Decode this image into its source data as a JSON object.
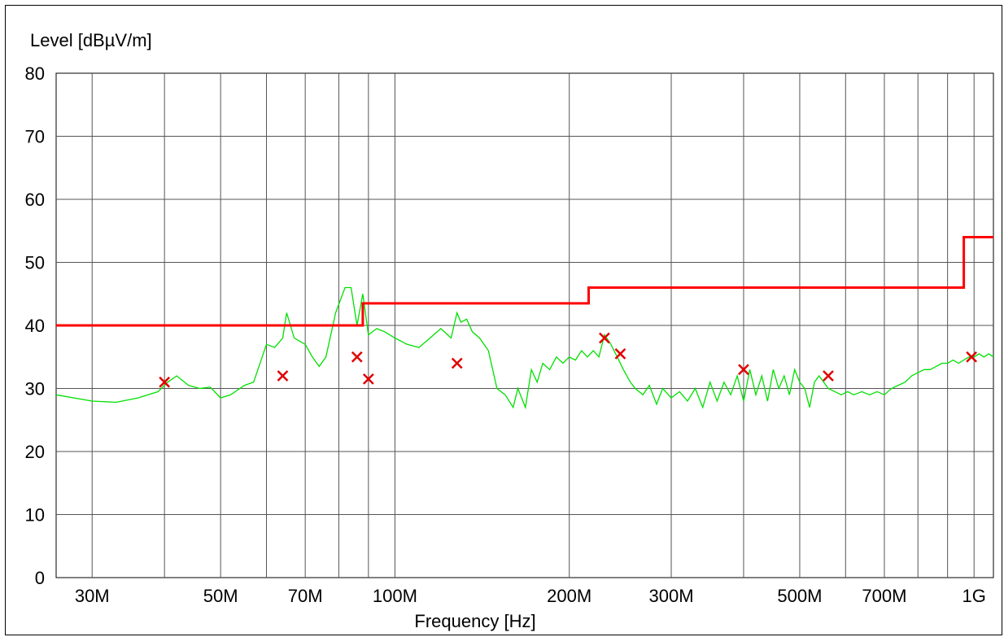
{
  "chart_data": {
    "type": "line",
    "title": "",
    "ylabel": "Level [dBµV/m]",
    "xlabel": "Frequency [Hz]",
    "x_scale": "log",
    "xlim": [
      26000000,
      1080000000
    ],
    "ylim": [
      0,
      80
    ],
    "yticks": [
      0,
      10,
      20,
      30,
      40,
      50,
      60,
      70,
      80
    ],
    "xticks": [
      {
        "value": 30000000,
        "label": "30M"
      },
      {
        "value": 50000000,
        "label": "50M"
      },
      {
        "value": 70000000,
        "label": "70M"
      },
      {
        "value": 100000000,
        "label": "100M"
      },
      {
        "value": 200000000,
        "label": "200M"
      },
      {
        "value": 300000000,
        "label": "300M"
      },
      {
        "value": 500000000,
        "label": "500M"
      },
      {
        "value": 700000000,
        "label": "700M"
      },
      {
        "value": 1000000000,
        "label": "1G"
      }
    ],
    "grid": true,
    "colors": {
      "scan": "#00e000",
      "limit": "#ff0000",
      "markers": "#e00000",
      "grid": "#000000"
    },
    "series": [
      {
        "kind": "scan",
        "x": [
          26000000,
          30000000,
          33000000,
          36000000,
          39000000,
          40500000,
          42000000,
          44000000,
          46000000,
          48000000,
          50000000,
          52000000,
          55000000,
          57000000,
          60000000,
          62000000,
          64000000,
          65000000,
          67000000,
          70000000,
          72000000,
          74000000,
          76000000,
          79000000,
          82000000,
          84000000,
          86000000,
          88000000,
          90000000,
          93000000,
          96000000,
          100000000,
          105000000,
          110000000,
          115000000,
          120000000,
          125000000,
          128000000,
          130000000,
          133000000,
          136000000,
          140000000,
          145000000,
          150000000,
          155000000,
          160000000,
          163000000,
          168000000,
          172000000,
          176000000,
          180000000,
          185000000,
          190000000,
          195000000,
          200000000,
          205000000,
          210000000,
          215000000,
          220000000,
          225000000,
          230000000,
          236000000,
          242000000,
          248000000,
          255000000,
          260000000,
          268000000,
          275000000,
          283000000,
          290000000,
          300000000,
          310000000,
          320000000,
          330000000,
          340000000,
          350000000,
          360000000,
          370000000,
          380000000,
          390000000,
          400000000,
          410000000,
          420000000,
          430000000,
          440000000,
          450000000,
          460000000,
          470000000,
          480000000,
          490000000,
          500000000,
          510000000,
          520000000,
          530000000,
          540000000,
          550000000,
          560000000,
          575000000,
          590000000,
          605000000,
          620000000,
          640000000,
          660000000,
          680000000,
          700000000,
          720000000,
          740000000,
          760000000,
          780000000,
          800000000,
          820000000,
          840000000,
          860000000,
          880000000,
          900000000,
          920000000,
          940000000,
          960000000,
          980000000,
          1000000000,
          1020000000,
          1040000000,
          1060000000,
          1080000000
        ],
        "y": [
          29,
          28,
          27.8,
          28.5,
          29.5,
          31,
          32,
          30.5,
          30,
          30.2,
          28.5,
          29,
          30.5,
          31,
          37,
          36.5,
          38,
          42,
          38,
          37,
          35,
          33.5,
          35,
          42,
          46,
          46,
          40,
          45,
          38.5,
          39.5,
          39,
          38,
          37,
          36.5,
          38,
          39.5,
          38,
          42,
          40.5,
          41,
          39,
          38,
          36,
          30,
          29,
          27,
          30,
          27,
          33,
          31,
          34,
          33,
          35,
          34,
          35,
          34.5,
          36,
          35,
          36,
          35,
          38.5,
          37,
          35,
          33,
          31,
          30,
          29,
          30.5,
          27.5,
          30,
          28.5,
          29.5,
          28,
          30,
          27,
          31,
          28,
          31,
          29,
          32,
          28,
          33,
          29,
          32,
          28,
          33,
          30,
          32,
          29,
          33,
          31,
          30,
          27,
          31,
          32,
          31,
          30,
          29.5,
          29,
          29.5,
          29,
          29.5,
          29,
          29.5,
          29,
          30,
          30.5,
          31,
          32,
          32.5,
          33,
          33,
          33.5,
          34,
          34,
          34.5,
          34,
          34.5,
          35,
          35,
          35.5,
          35,
          35.5,
          35
        ]
      },
      {
        "kind": "limit",
        "x": [
          26000000,
          88000000,
          88000000,
          216000000,
          216000000,
          960000000,
          960000000,
          1080000000
        ],
        "y": [
          40,
          40,
          43.5,
          43.5,
          46,
          46,
          54,
          54
        ]
      }
    ],
    "markers": {
      "x": [
        40000000,
        64000000,
        86000000,
        90000000,
        128000000,
        230000000,
        245000000,
        400000000,
        560000000,
        990000000
      ],
      "y": [
        31,
        32,
        35,
        31.5,
        34,
        38,
        35.5,
        33,
        32,
        35
      ]
    }
  }
}
